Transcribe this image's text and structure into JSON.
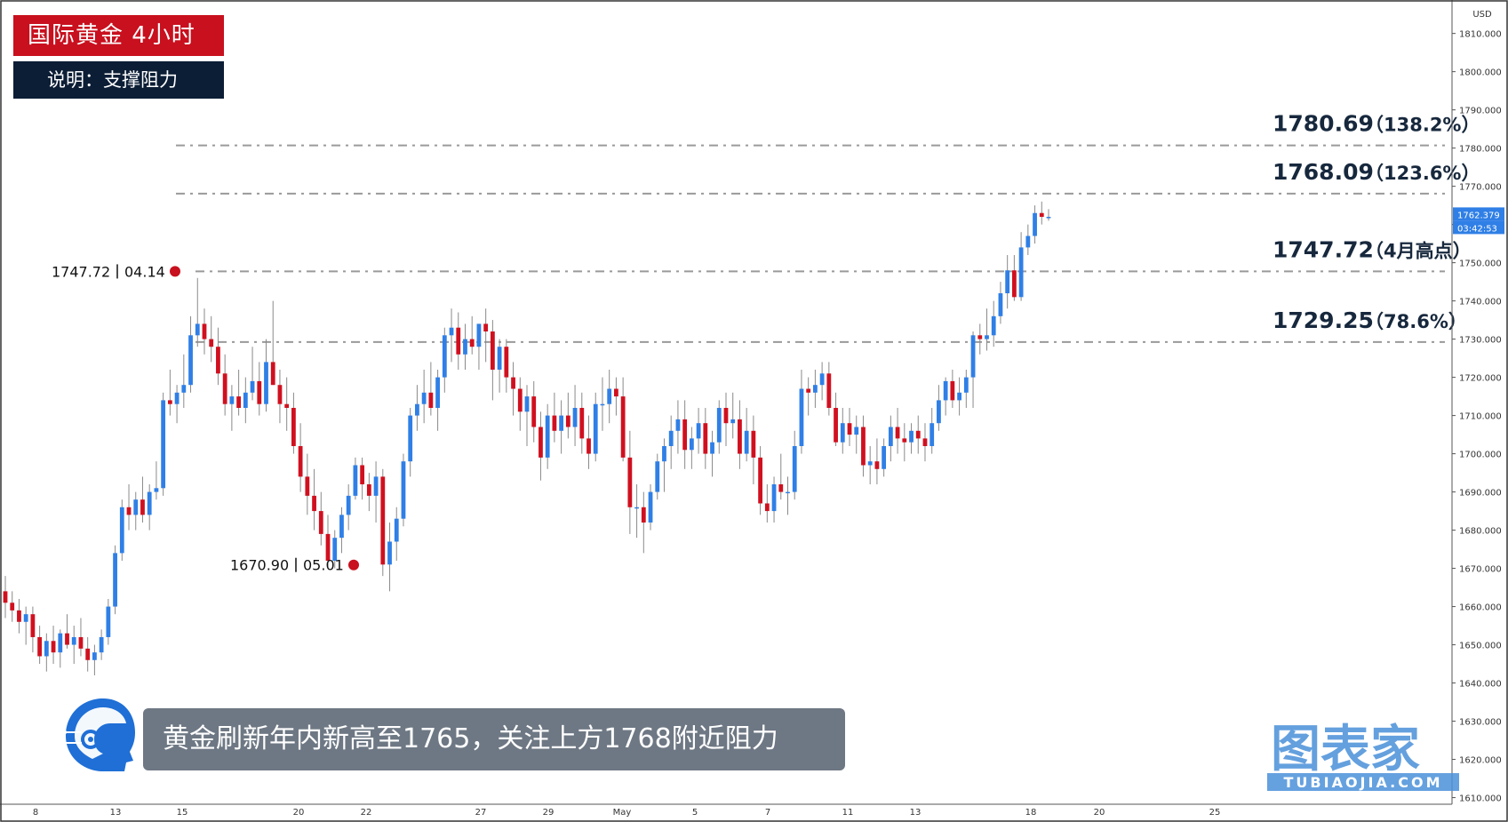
{
  "header": {
    "title": "国际黄金  4小时",
    "subtitle": "说明：支撑阻力"
  },
  "caption": "黄金刷新年内新高至1765，关注上方1768附近阻力",
  "watermark": {
    "brand": "图表家",
    "domain": "TUBIAOJIA.COM",
    "color": "#4a90d9"
  },
  "colors": {
    "up": "#2f7fe6",
    "down": "#d0101f",
    "level_line": "#9a9a9a",
    "marker": "#c8101e",
    "price_label_bg": "#2f7fe6"
  },
  "chart_data": {
    "type": "candlestick",
    "title": "国际黄金  4小时",
    "currency": "USD",
    "ylim": [
      1608.5,
      1815.5
    ],
    "y_ticks": [
      "1610.000",
      "1620.000",
      "1630.000",
      "1640.000",
      "1650.000",
      "1660.000",
      "1670.000",
      "1680.000",
      "1690.000",
      "1700.000",
      "1710.000",
      "1720.000",
      "1730.000",
      "1740.000",
      "1750.000",
      "1760.000",
      "1770.000",
      "1780.000",
      "1790.000",
      "1800.000",
      "1810.000"
    ],
    "x_ticks": [
      "8",
      "13",
      "15",
      "20",
      "22",
      "27",
      "29",
      "May",
      "5",
      "7",
      "11",
      "13",
      "18",
      "20",
      "25"
    ],
    "current_price": "1762.379",
    "countdown": "03:42:53",
    "levels": [
      {
        "value": 1780.69,
        "label": "1780.69",
        "tag": "（138.2%）"
      },
      {
        "value": 1768.09,
        "label": "1768.09",
        "tag": "（123.6%）"
      },
      {
        "value": 1747.72,
        "label": "1747.72",
        "tag": "（4月高点）"
      },
      {
        "value": 1729.25,
        "label": "1729.25",
        "tag": "（78.6%）"
      }
    ],
    "markers": [
      {
        "value": 1747.72,
        "price_label": "1747.72",
        "date_label": "04.14"
      },
      {
        "value": 1670.9,
        "price_label": "1670.90",
        "date_label": "05.01"
      }
    ],
    "candles": [
      [
        1664,
        1668,
        1657,
        1661
      ],
      [
        1661,
        1664,
        1656,
        1659
      ],
      [
        1659,
        1662,
        1653,
        1656
      ],
      [
        1656,
        1660,
        1650,
        1658
      ],
      [
        1658,
        1660,
        1648,
        1652
      ],
      [
        1652,
        1655,
        1645,
        1647
      ],
      [
        1647,
        1653,
        1643,
        1651
      ],
      [
        1651,
        1655,
        1645,
        1648
      ],
      [
        1648,
        1654,
        1644,
        1653
      ],
      [
        1653,
        1658,
        1649,
        1650
      ],
      [
        1650,
        1655,
        1645,
        1652
      ],
      [
        1652,
        1657,
        1647,
        1649
      ],
      [
        1649,
        1652,
        1643,
        1646
      ],
      [
        1646,
        1650,
        1642,
        1648
      ],
      [
        1648,
        1654,
        1646,
        1652
      ],
      [
        1652,
        1662,
        1650,
        1660
      ],
      [
        1660,
        1676,
        1658,
        1674
      ],
      [
        1674,
        1688,
        1672,
        1686
      ],
      [
        1686,
        1692,
        1680,
        1684
      ],
      [
        1684,
        1690,
        1680,
        1688
      ],
      [
        1688,
        1694,
        1682,
        1684
      ],
      [
        1684,
        1692,
        1680,
        1690
      ],
      [
        1690,
        1698,
        1688,
        1691
      ],
      [
        1691,
        1716,
        1689,
        1714
      ],
      [
        1714,
        1722,
        1710,
        1713
      ],
      [
        1713,
        1718,
        1708,
        1716
      ],
      [
        1716,
        1726,
        1712,
        1718
      ],
      [
        1718,
        1736,
        1716,
        1731
      ],
      [
        1731,
        1746,
        1728,
        1734
      ],
      [
        1734,
        1738,
        1726,
        1730
      ],
      [
        1730,
        1736,
        1724,
        1728
      ],
      [
        1728,
        1733,
        1718,
        1721
      ],
      [
        1721,
        1726,
        1710,
        1713
      ],
      [
        1713,
        1718,
        1706,
        1715
      ],
      [
        1715,
        1722,
        1710,
        1712
      ],
      [
        1712,
        1720,
        1708,
        1716
      ],
      [
        1716,
        1728,
        1714,
        1719
      ],
      [
        1719,
        1724,
        1710,
        1713
      ],
      [
        1713,
        1730,
        1711,
        1724
      ],
      [
        1724,
        1740,
        1718,
        1718
      ],
      [
        1718,
        1722,
        1708,
        1713
      ],
      [
        1713,
        1720,
        1706,
        1712
      ],
      [
        1712,
        1716,
        1700,
        1702
      ],
      [
        1702,
        1708,
        1690,
        1694
      ],
      [
        1694,
        1700,
        1684,
        1689
      ],
      [
        1689,
        1696,
        1680,
        1685
      ],
      [
        1685,
        1690,
        1676,
        1679
      ],
      [
        1679,
        1684,
        1670,
        1672
      ],
      [
        1672,
        1680,
        1670,
        1678
      ],
      [
        1678,
        1686,
        1674,
        1684
      ],
      [
        1684,
        1692,
        1680,
        1689
      ],
      [
        1689,
        1699,
        1688,
        1697
      ],
      [
        1697,
        1699,
        1688,
        1692
      ],
      [
        1692,
        1695,
        1685,
        1689
      ],
      [
        1689,
        1698,
        1682,
        1694
      ],
      [
        1694,
        1696,
        1668,
        1671
      ],
      [
        1671,
        1682,
        1664,
        1677
      ],
      [
        1677,
        1686,
        1672,
        1683
      ],
      [
        1683,
        1700,
        1681,
        1698
      ],
      [
        1698,
        1712,
        1694,
        1710
      ],
      [
        1710,
        1718,
        1706,
        1713
      ],
      [
        1713,
        1722,
        1708,
        1716
      ],
      [
        1716,
        1724,
        1710,
        1712
      ],
      [
        1712,
        1722,
        1706,
        1720
      ],
      [
        1720,
        1733,
        1716,
        1731
      ],
      [
        1731,
        1738,
        1724,
        1733
      ],
      [
        1733,
        1737,
        1722,
        1726
      ],
      [
        1726,
        1734,
        1722,
        1730
      ],
      [
        1730,
        1736,
        1726,
        1728
      ],
      [
        1728,
        1734,
        1722,
        1734
      ],
      [
        1734,
        1738,
        1724,
        1732
      ],
      [
        1732,
        1735,
        1714,
        1722
      ],
      [
        1722,
        1730,
        1716,
        1728
      ],
      [
        1728,
        1730,
        1716,
        1720
      ],
      [
        1720,
        1724,
        1710,
        1717
      ],
      [
        1717,
        1720,
        1706,
        1711
      ],
      [
        1711,
        1718,
        1702,
        1715
      ],
      [
        1715,
        1719,
        1703,
        1707
      ],
      [
        1707,
        1711,
        1693,
        1699
      ],
      [
        1699,
        1713,
        1696,
        1710
      ],
      [
        1710,
        1716,
        1703,
        1706
      ],
      [
        1706,
        1714,
        1700,
        1710
      ],
      [
        1710,
        1716,
        1704,
        1707
      ],
      [
        1707,
        1718,
        1702,
        1712
      ],
      [
        1712,
        1716,
        1700,
        1704
      ],
      [
        1704,
        1710,
        1696,
        1700
      ],
      [
        1700,
        1716,
        1698,
        1713
      ],
      [
        1713,
        1720,
        1706,
        1713
      ],
      [
        1713,
        1722,
        1708,
        1717
      ],
      [
        1717,
        1720,
        1710,
        1715
      ],
      [
        1715,
        1720,
        1698,
        1699
      ],
      [
        1699,
        1706,
        1679,
        1686
      ],
      [
        1686,
        1692,
        1678,
        1686
      ],
      [
        1686,
        1690,
        1674,
        1682
      ],
      [
        1682,
        1692,
        1680,
        1690
      ],
      [
        1690,
        1700,
        1688,
        1698
      ],
      [
        1698,
        1704,
        1690,
        1702
      ],
      [
        1702,
        1710,
        1696,
        1706
      ],
      [
        1706,
        1714,
        1700,
        1709
      ],
      [
        1709,
        1714,
        1696,
        1701
      ],
      [
        1701,
        1707,
        1696,
        1704
      ],
      [
        1704,
        1712,
        1700,
        1708
      ],
      [
        1708,
        1712,
        1696,
        1700
      ],
      [
        1700,
        1706,
        1694,
        1703
      ],
      [
        1703,
        1714,
        1700,
        1712
      ],
      [
        1712,
        1716,
        1702,
        1708
      ],
      [
        1708,
        1716,
        1704,
        1709
      ],
      [
        1709,
        1714,
        1696,
        1700
      ],
      [
        1700,
        1712,
        1698,
        1706
      ],
      [
        1706,
        1710,
        1692,
        1699
      ],
      [
        1699,
        1702,
        1684,
        1687
      ],
      [
        1687,
        1692,
        1682,
        1685
      ],
      [
        1685,
        1694,
        1682,
        1692
      ],
      [
        1692,
        1700,
        1688,
        1690
      ],
      [
        1690,
        1694,
        1684,
        1690
      ],
      [
        1690,
        1706,
        1688,
        1702
      ],
      [
        1702,
        1722,
        1700,
        1717
      ],
      [
        1717,
        1720,
        1710,
        1716
      ],
      [
        1716,
        1722,
        1712,
        1718
      ],
      [
        1718,
        1724,
        1714,
        1721
      ],
      [
        1721,
        1724,
        1710,
        1712
      ],
      [
        1712,
        1716,
        1702,
        1703
      ],
      [
        1703,
        1712,
        1700,
        1708
      ],
      [
        1708,
        1712,
        1702,
        1705
      ],
      [
        1705,
        1710,
        1700,
        1707
      ],
      [
        1707,
        1710,
        1694,
        1697
      ],
      [
        1697,
        1702,
        1692,
        1698
      ],
      [
        1698,
        1704,
        1692,
        1696
      ],
      [
        1696,
        1704,
        1694,
        1702
      ],
      [
        1702,
        1710,
        1698,
        1707
      ],
      [
        1707,
        1712,
        1700,
        1704
      ],
      [
        1704,
        1708,
        1698,
        1703
      ],
      [
        1703,
        1708,
        1700,
        1706
      ],
      [
        1706,
        1710,
        1700,
        1704
      ],
      [
        1704,
        1708,
        1698,
        1702
      ],
      [
        1702,
        1712,
        1700,
        1708
      ],
      [
        1708,
        1718,
        1706,
        1714
      ],
      [
        1714,
        1720,
        1710,
        1719
      ],
      [
        1719,
        1722,
        1712,
        1714
      ],
      [
        1714,
        1720,
        1710,
        1716
      ],
      [
        1716,
        1722,
        1712,
        1720
      ],
      [
        1720,
        1732,
        1712,
        1731
      ],
      [
        1731,
        1734,
        1726,
        1730
      ],
      [
        1730,
        1738,
        1727,
        1731
      ],
      [
        1731,
        1740,
        1728,
        1736
      ],
      [
        1736,
        1745,
        1734,
        1742
      ],
      [
        1742,
        1752,
        1738,
        1748
      ],
      [
        1748,
        1752,
        1740,
        1741
      ],
      [
        1741,
        1758,
        1740,
        1754
      ],
      [
        1754,
        1760,
        1752,
        1757
      ],
      [
        1757,
        1765,
        1755,
        1763
      ],
      [
        1763,
        1766,
        1760,
        1762
      ],
      [
        1762,
        1764,
        1761,
        1762
      ]
    ]
  }
}
